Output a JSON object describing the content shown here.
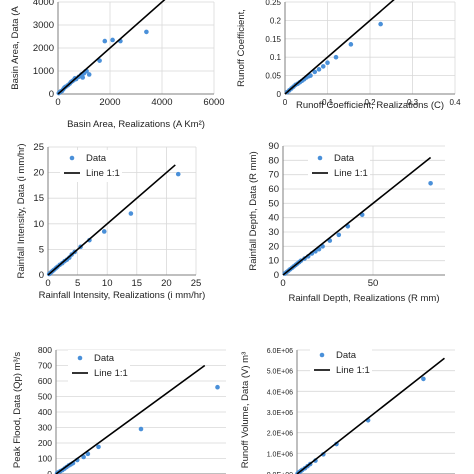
{
  "chart_data": [
    {
      "type": "scatter",
      "xlabel": "Basin Area, Realizations (A Km²)",
      "ylabel": "Basin Area, Data (A",
      "xlim": [
        0,
        6000
      ],
      "ylim": [
        0,
        4000
      ],
      "xticks": [
        "0",
        "2000",
        "4000",
        "6000"
      ],
      "yticks": [
        "0",
        "1000",
        "2000",
        "3000",
        "4000"
      ],
      "legend": null,
      "series": [
        {
          "kind": "points",
          "color": "#4a90d9",
          "x": [
            30,
            60,
            100,
            150,
            200,
            250,
            300,
            380,
            450,
            500,
            550,
            600,
            650,
            700,
            800,
            900,
            950,
            1000,
            1050,
            1100,
            1200,
            1600,
            1800,
            2100,
            2400,
            3400
          ],
          "y": [
            40,
            70,
            110,
            130,
            200,
            280,
            320,
            380,
            450,
            520,
            560,
            600,
            680,
            650,
            750,
            850,
            720,
            900,
            980,
            1000,
            850,
            1450,
            2300,
            2350,
            2300,
            2700
          ]
        },
        {
          "kind": "line",
          "color": "#000000",
          "x": [
            0,
            4400
          ],
          "y": [
            0,
            4400
          ]
        }
      ]
    },
    {
      "type": "scatter",
      "xlabel": "Runoff Coefficient, Realizations (C)",
      "ylabel": "Runoff Coefficient,",
      "xlim": [
        0,
        0.4
      ],
      "ylim": [
        0,
        0.25
      ],
      "xticks": [
        "0",
        "0.1",
        "0.2",
        "0.3",
        "0.4"
      ],
      "yticks": [
        "0",
        "0.05",
        "0.1",
        "0.15",
        "0.2",
        "0.25"
      ],
      "legend": null,
      "series": [
        {
          "kind": "points",
          "color": "#4a90d9",
          "x": [
            0.005,
            0.01,
            0.015,
            0.02,
            0.025,
            0.03,
            0.035,
            0.04,
            0.045,
            0.05,
            0.055,
            0.06,
            0.07,
            0.08,
            0.09,
            0.1,
            0.12,
            0.155,
            0.225
          ],
          "y": [
            0.005,
            0.01,
            0.015,
            0.02,
            0.025,
            0.028,
            0.032,
            0.036,
            0.04,
            0.045,
            0.048,
            0.05,
            0.06,
            0.067,
            0.075,
            0.085,
            0.1,
            0.135,
            0.19
          ]
        },
        {
          "kind": "line",
          "color": "#000000",
          "x": [
            0,
            0.29
          ],
          "y": [
            0,
            0.29
          ]
        }
      ]
    },
    {
      "type": "scatter",
      "xlabel": "Rainfall Intensity, Realizations (i mm/hr)",
      "ylabel": "Rainfall Intensity, Data (i mm/hr)",
      "xlim": [
        0,
        25
      ],
      "ylim": [
        0,
        25
      ],
      "xticks": [
        "0",
        "5",
        "10",
        "15",
        "20",
        "25"
      ],
      "yticks": [
        "0",
        "5",
        "10",
        "15",
        "20",
        "25"
      ],
      "legend": [
        "Data",
        "Line 1:1"
      ],
      "series": [
        {
          "kind": "points",
          "color": "#4a90d9",
          "name": "Data",
          "x": [
            0.2,
            0.4,
            0.6,
            0.8,
            1.0,
            1.3,
            1.6,
            2.0,
            2.4,
            2.8,
            3.2,
            3.6,
            4.0,
            4.5,
            5.5,
            7.0,
            9.5,
            14,
            22
          ],
          "y": [
            0.2,
            0.4,
            0.6,
            0.8,
            1.0,
            1.3,
            1.6,
            2.0,
            2.3,
            2.7,
            3.0,
            3.4,
            4.0,
            4.5,
            5.5,
            6.8,
            8.5,
            12,
            19.7
          ]
        },
        {
          "kind": "line",
          "color": "#000000",
          "name": "Line 1:1",
          "x": [
            0,
            21.5
          ],
          "y": [
            0,
            21.5
          ]
        }
      ]
    },
    {
      "type": "scatter",
      "xlabel": "Rainfall Depth, Realizations (R mm)",
      "ylabel": "Rainfall Depth, Data (R mm)",
      "xlim": [
        0,
        90
      ],
      "ylim": [
        0,
        90
      ],
      "xticks": [
        "0",
        "50"
      ],
      "yticks": [
        "0",
        "10",
        "20",
        "30",
        "40",
        "50",
        "60",
        "70",
        "80",
        "90"
      ],
      "legend": [
        "Data",
        "Line 1:1"
      ],
      "series": [
        {
          "kind": "points",
          "color": "#4a90d9",
          "name": "Data",
          "x": [
            1,
            2,
            3,
            4,
            5,
            6,
            7,
            8,
            9,
            10,
            12,
            14,
            16,
            18,
            20,
            22,
            26,
            31,
            36,
            44,
            82
          ],
          "y": [
            1,
            2,
            3,
            4,
            5,
            6,
            7,
            8,
            9,
            10,
            11.5,
            13,
            15,
            16.5,
            18,
            20,
            24,
            28,
            34,
            42,
            64
          ]
        },
        {
          "kind": "line",
          "color": "#000000",
          "name": "Line 1:1",
          "x": [
            0,
            82
          ],
          "y": [
            0,
            82
          ]
        }
      ]
    },
    {
      "type": "scatter",
      "xlabel": "",
      "ylabel": "Peak Flood, Data (Qp) m³/s",
      "xlim": [
        0,
        800
      ],
      "ylim": [
        0,
        800
      ],
      "xticks": [],
      "yticks": [
        "0",
        "100",
        "200",
        "300",
        "400",
        "500",
        "600",
        "700",
        "800"
      ],
      "legend": [
        "Data",
        "Line 1:1"
      ],
      "series": [
        {
          "kind": "points",
          "color": "#4a90d9",
          "name": "Data",
          "x": [
            5,
            10,
            20,
            30,
            40,
            50,
            60,
            70,
            80,
            100,
            130,
            150,
            200,
            400,
            760
          ],
          "y": [
            5,
            10,
            18,
            25,
            35,
            45,
            55,
            62,
            70,
            90,
            110,
            130,
            175,
            290,
            560
          ]
        },
        {
          "kind": "line",
          "color": "#000000",
          "name": "Line 1:1",
          "x": [
            0,
            700
          ],
          "y": [
            0,
            700
          ]
        }
      ]
    },
    {
      "type": "scatter",
      "xlabel": "",
      "ylabel": "Runoff Volume, Data (V) m³",
      "xlim": [
        0,
        6000000
      ],
      "ylim": [
        0,
        6000000
      ],
      "xticks": [],
      "yticks": [
        "0.0E+00",
        "1.0E+06",
        "2.0E+06",
        "3.0E+06",
        "4.0E+06",
        "5.0E+06",
        "6.0E+06"
      ],
      "legend": [
        "Data",
        "Line 1:1"
      ],
      "series": [
        {
          "kind": "points",
          "color": "#4a90d9",
          "name": "Data",
          "x": [
            20000,
            50000,
            100000,
            150000,
            200000,
            300000,
            400000,
            500000,
            700000,
            1000000,
            1500000,
            2700000,
            4800000
          ],
          "y": [
            20000,
            50000,
            100000,
            150000,
            200000,
            280000,
            380000,
            480000,
            650000,
            950000,
            1450000,
            2600000,
            4600000
          ]
        },
        {
          "kind": "line",
          "color": "#000000",
          "name": "Line 1:1",
          "x": [
            0,
            5600000
          ],
          "y": [
            0,
            5600000
          ]
        }
      ]
    }
  ]
}
